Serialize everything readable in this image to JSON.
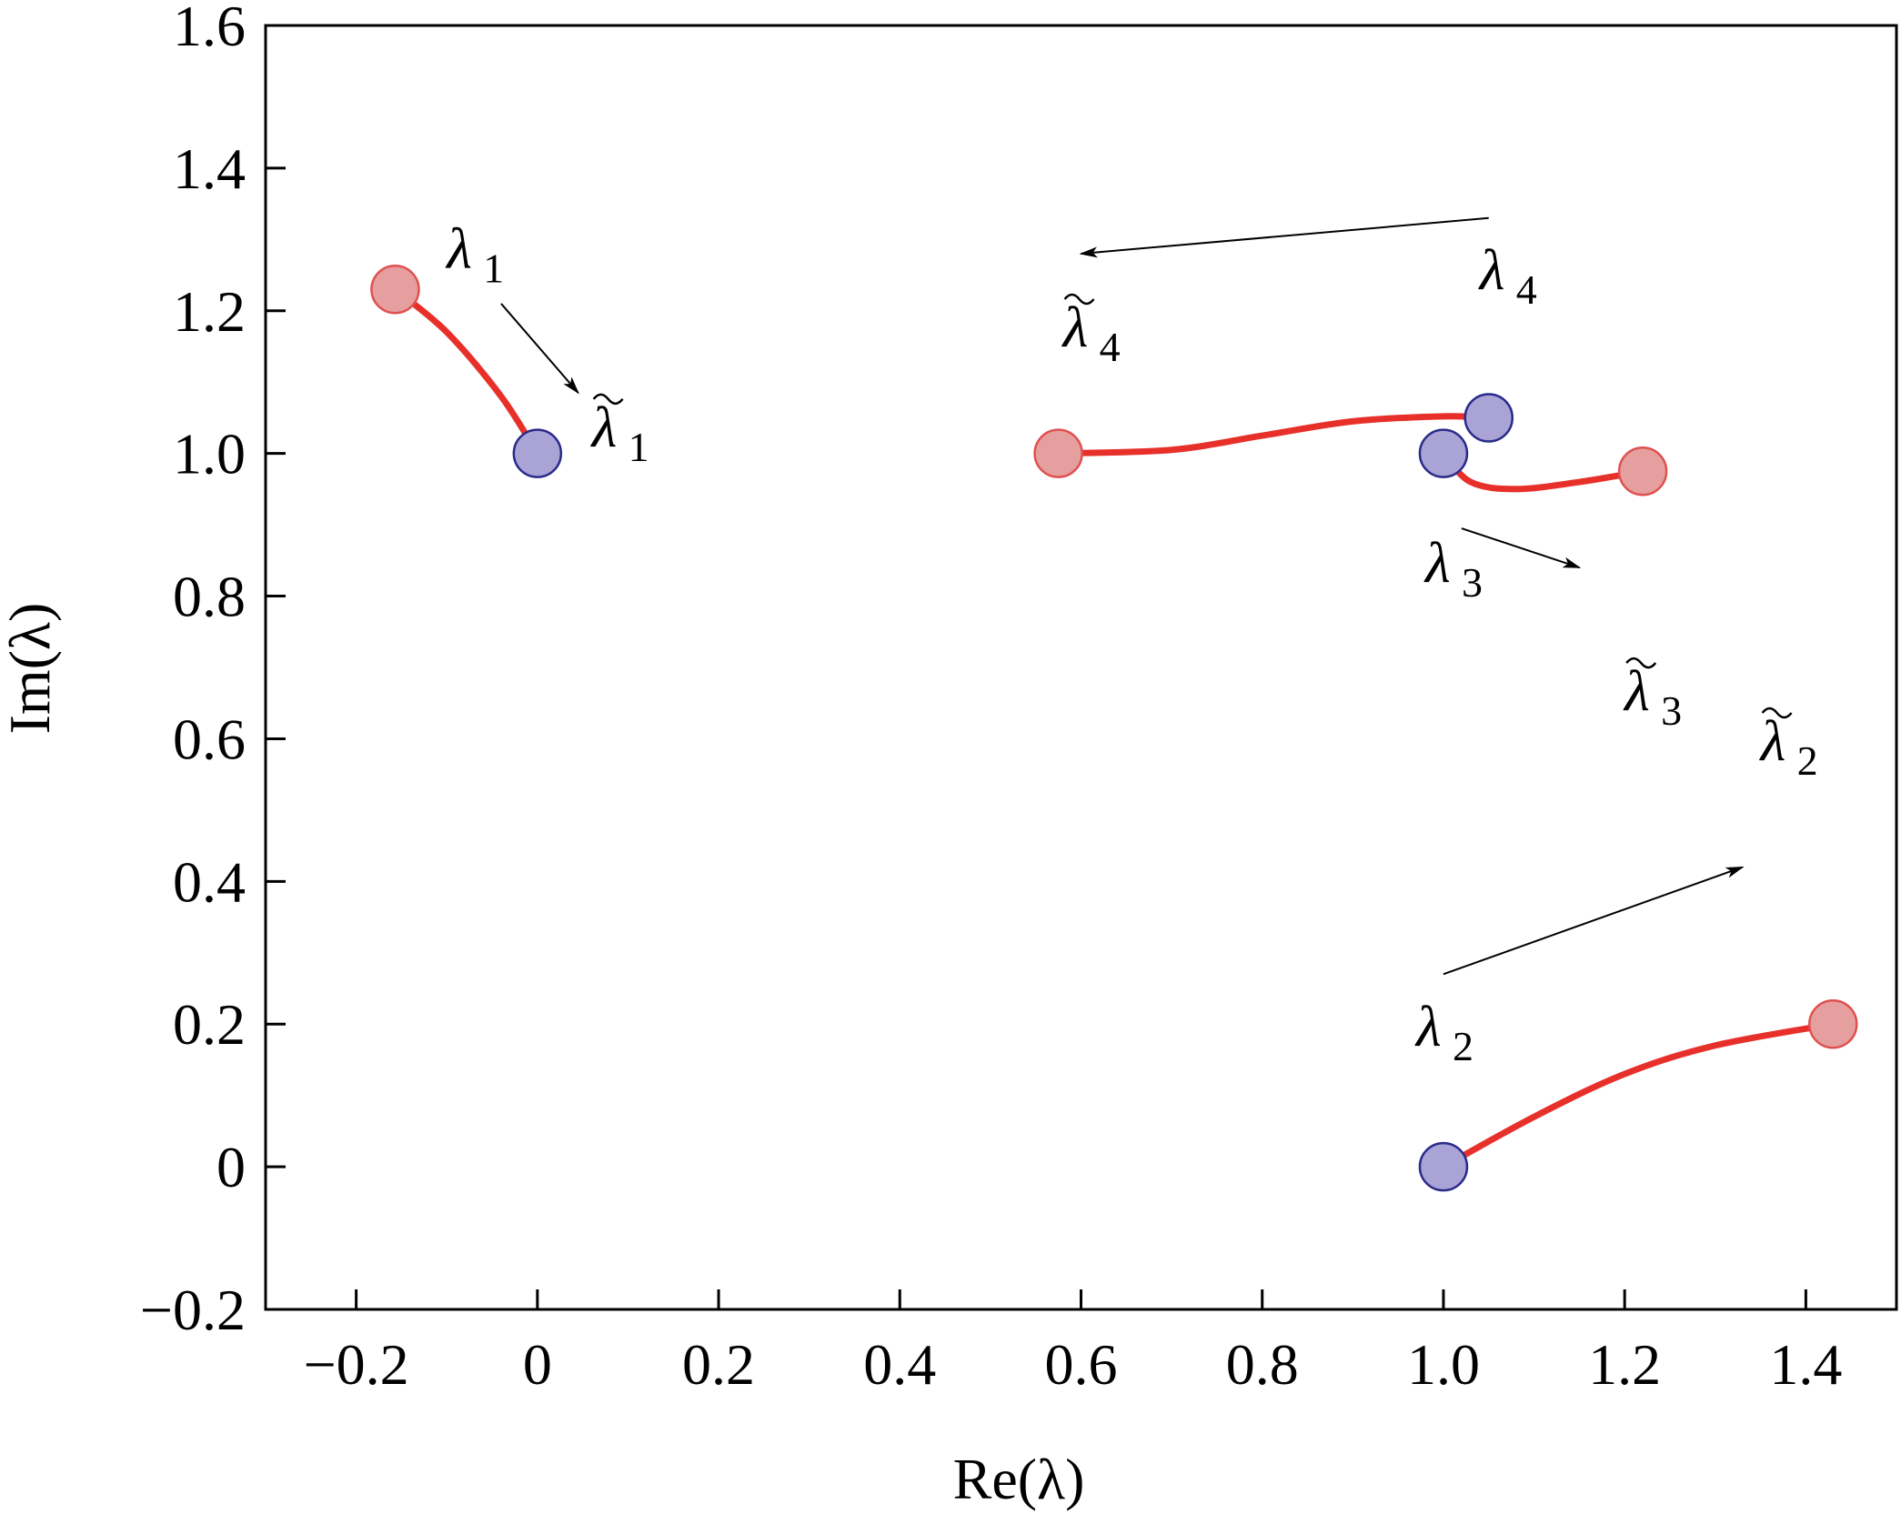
{
  "chart_data": {
    "type": "scatter",
    "title": "",
    "xlabel": "Re(λ)",
    "ylabel": "Im(λ)",
    "xlim": [
      -0.3,
      1.5
    ],
    "ylim": [
      -0.2,
      1.6
    ],
    "xticks": [
      -0.2,
      0,
      0.2,
      0.4,
      0.6,
      0.8,
      1.0,
      1.2,
      1.4
    ],
    "xtick_labels": [
      "−0.2",
      "0",
      "0.2",
      "0.4",
      "0.6",
      "0.8",
      "1.0",
      "1.2",
      "1.4"
    ],
    "yticks": [
      -0.2,
      0,
      0.2,
      0.4,
      0.6,
      0.8,
      1.0,
      1.2,
      1.4,
      1.6
    ],
    "ytick_labels": [
      "−0.2",
      "0",
      "0.2",
      "0.4",
      "0.6",
      "0.8",
      "1.0",
      "1.2",
      "1.4",
      "1.6"
    ],
    "grid": false,
    "colors": {
      "path": "#e8302a",
      "start_fill": "#e59f9f",
      "start_stroke": "#e05050",
      "end_fill": "#a9a3d6",
      "end_stroke": "#2a2a8a"
    },
    "trajectories": [
      {
        "start": [
          -0.157,
          1.23
        ],
        "end": [
          0.0,
          1.0
        ],
        "path": [
          [
            -0.157,
            1.23
          ],
          [
            -0.1,
            1.17
          ],
          [
            -0.04,
            1.08
          ],
          [
            0.0,
            1.0
          ]
        ]
      },
      {
        "start": [
          1.43,
          0.2
        ],
        "end": [
          1.0,
          0.0
        ],
        "path": [
          [
            1.0,
            0.0
          ],
          [
            1.1,
            0.07
          ],
          [
            1.2,
            0.13
          ],
          [
            1.3,
            0.17
          ],
          [
            1.43,
            0.2
          ]
        ]
      },
      {
        "start": [
          1.22,
          0.975
        ],
        "end": [
          1.0,
          1.0
        ],
        "path": [
          [
            1.0,
            1.0
          ],
          [
            1.03,
            0.96
          ],
          [
            1.08,
            0.95
          ],
          [
            1.15,
            0.96
          ],
          [
            1.22,
            0.975
          ]
        ]
      },
      {
        "start": [
          0.575,
          1.0
        ],
        "end": [
          1.05,
          1.05
        ],
        "path": [
          [
            0.575,
            1.0
          ],
          [
            0.7,
            1.005
          ],
          [
            0.8,
            1.025
          ],
          [
            0.9,
            1.045
          ],
          [
            1.0,
            1.052
          ],
          [
            1.05,
            1.05
          ]
        ]
      }
    ],
    "annotations": [
      {
        "symbol": "λ",
        "sub": "1",
        "tilde": false,
        "pos": [
          -0.1,
          1.26
        ]
      },
      {
        "symbol": "λ",
        "sub": "1",
        "tilde": true,
        "pos": [
          0.06,
          1.01
        ]
      },
      {
        "symbol": "λ",
        "sub": "2",
        "tilde": false,
        "pos": [
          0.97,
          0.17
        ]
      },
      {
        "symbol": "λ",
        "sub": "2",
        "tilde": true,
        "pos": [
          1.35,
          0.57
        ]
      },
      {
        "symbol": "λ",
        "sub": "3",
        "tilde": false,
        "pos": [
          0.98,
          0.82
        ]
      },
      {
        "symbol": "λ",
        "sub": "3",
        "tilde": true,
        "pos": [
          1.2,
          0.64
        ]
      },
      {
        "symbol": "λ",
        "sub": "4",
        "tilde": false,
        "pos": [
          1.04,
          1.23
        ]
      },
      {
        "symbol": "λ",
        "sub": "4",
        "tilde": true,
        "pos": [
          0.58,
          1.15
        ]
      }
    ],
    "arrows": [
      {
        "from": [
          -0.04,
          1.21
        ],
        "to": [
          0.045,
          1.085
        ]
      },
      {
        "from": [
          1.0,
          0.27
        ],
        "to": [
          1.33,
          0.42
        ]
      },
      {
        "from": [
          1.02,
          0.895
        ],
        "to": [
          1.15,
          0.84
        ]
      },
      {
        "from": [
          1.05,
          1.33
        ],
        "to": [
          0.6,
          1.28
        ]
      }
    ]
  }
}
